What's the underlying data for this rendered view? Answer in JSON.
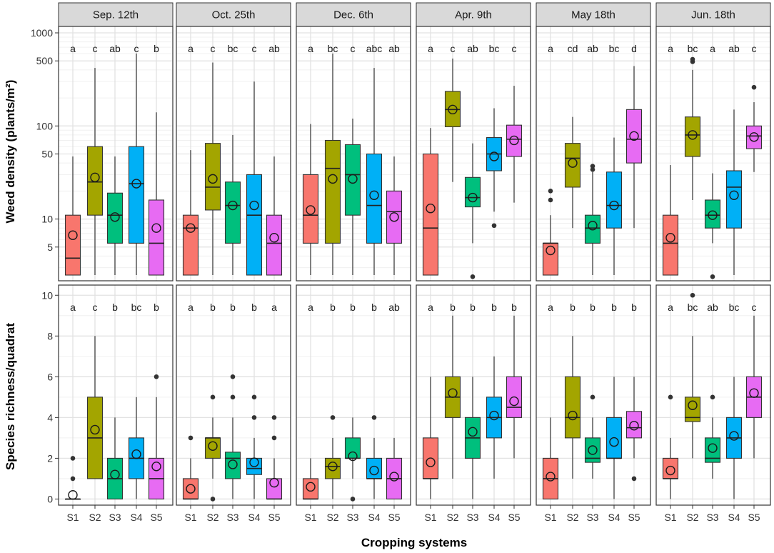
{
  "chart_data": {
    "type": "boxplot",
    "title": "",
    "xlabel": "Cropping systems",
    "systems": [
      "S1",
      "S2",
      "S3",
      "S4",
      "S5"
    ],
    "colors": [
      "#F8766D",
      "#A3A500",
      "#00BF7D",
      "#00B0F6",
      "#E76BF3"
    ],
    "dates": [
      "Sep. 12th",
      "Oct. 25th",
      "Dec. 6th",
      "Apr. 9th",
      "May 18th",
      "Jun. 18th"
    ],
    "rows": [
      {
        "ylabel": "Weed density (plants/m²)",
        "scale": "log10",
        "ylim": [
          2.5,
          1000
        ],
        "ticks": [
          5,
          10,
          50,
          100,
          500,
          1000
        ],
        "tick_labels": [
          "5",
          "10",
          "50",
          "100",
          "500",
          "1000"
        ],
        "panels": [
          {
            "letters": [
              "a",
              "c",
              "ab",
              "c",
              "b"
            ],
            "boxes": [
              {
                "q1": 2.5,
                "med": 3.8,
                "q3": 11,
                "wlo": 2.5,
                "whi": 47,
                "mean": 6.7,
                "out": []
              },
              {
                "q1": 11,
                "med": 25,
                "q3": 60,
                "wlo": 2.5,
                "whi": 420,
                "mean": 28,
                "out": []
              },
              {
                "q1": 5.5,
                "med": 11,
                "q3": 19,
                "wlo": 2.5,
                "whi": 47,
                "mean": 10.5,
                "out": []
              },
              {
                "q1": 5.5,
                "med": 24,
                "q3": 60,
                "wlo": 2.5,
                "whi": 600,
                "mean": 24,
                "out": []
              },
              {
                "q1": 2.5,
                "med": 5.5,
                "q3": 16,
                "wlo": 2.5,
                "whi": 140,
                "mean": 8,
                "out": []
              }
            ]
          },
          {
            "letters": [
              "a",
              "c",
              "bc",
              "c",
              "ab"
            ],
            "boxes": [
              {
                "q1": 2.5,
                "med": 8,
                "q3": 11,
                "wlo": 2.5,
                "whi": 55,
                "mean": 8,
                "out": []
              },
              {
                "q1": 12.5,
                "med": 22,
                "q3": 65,
                "wlo": 2.5,
                "whi": 480,
                "mean": 27,
                "out": []
              },
              {
                "q1": 5.5,
                "med": 14,
                "q3": 25,
                "wlo": 2.5,
                "whi": 80,
                "mean": 14,
                "out": []
              },
              {
                "q1": 2.5,
                "med": 11,
                "q3": 30,
                "wlo": 2.5,
                "whi": 300,
                "mean": 14,
                "out": []
              },
              {
                "q1": 2.5,
                "med": 5.5,
                "q3": 11,
                "wlo": 2.5,
                "whi": 47,
                "mean": 6.3,
                "out": []
              }
            ]
          },
          {
            "letters": [
              "a",
              "bc",
              "c",
              "abc",
              "ab"
            ],
            "boxes": [
              {
                "q1": 5.5,
                "med": 11,
                "q3": 30,
                "wlo": 2.5,
                "whi": 105,
                "mean": 12.5,
                "out": []
              },
              {
                "q1": 5.5,
                "med": 35,
                "q3": 70,
                "wlo": 2.5,
                "whi": 600,
                "mean": 27,
                "out": []
              },
              {
                "q1": 11,
                "med": 30,
                "q3": 63,
                "wlo": 2.5,
                "whi": 120,
                "mean": 27,
                "out": []
              },
              {
                "q1": 5.5,
                "med": 14,
                "q3": 50,
                "wlo": 2.5,
                "whi": 420,
                "mean": 18,
                "out": []
              },
              {
                "q1": 5.5,
                "med": 12,
                "q3": 20,
                "wlo": 2.5,
                "whi": 47,
                "mean": 10.5,
                "out": []
              }
            ]
          },
          {
            "letters": [
              "a",
              "c",
              "ab",
              "bc",
              "c"
            ],
            "boxes": [
              {
                "q1": 2.5,
                "med": 8,
                "q3": 50,
                "wlo": 2.5,
                "whi": 95,
                "mean": 13,
                "out": []
              },
              {
                "q1": 98,
                "med": 150,
                "q3": 235,
                "wlo": 25,
                "whi": 530,
                "mean": 150,
                "out": []
              },
              {
                "q1": 13.5,
                "med": 17,
                "q3": 28,
                "wlo": 5.5,
                "whi": 65,
                "mean": 17,
                "out": [
                  2.4
                ]
              },
              {
                "q1": 33,
                "med": 50,
                "q3": 75,
                "wlo": 12,
                "whi": 155,
                "mean": 47,
                "out": [
                  8.5
                ]
              },
              {
                "q1": 47,
                "med": 72,
                "q3": 102,
                "wlo": 15,
                "whi": 270,
                "mean": 70,
                "out": []
              }
            ]
          },
          {
            "letters": [
              "a",
              "cd",
              "ab",
              "bc",
              "d"
            ],
            "boxes": [
              {
                "q1": 2.5,
                "med": 5.5,
                "q3": 5.5,
                "wlo": 2.5,
                "whi": 11,
                "mean": 4.6,
                "out": [
                  16,
                  20
                ]
              },
              {
                "q1": 22,
                "med": 45,
                "q3": 65,
                "wlo": 8,
                "whi": 125,
                "mean": 40,
                "out": []
              },
              {
                "q1": 5.5,
                "med": 8,
                "q3": 11,
                "wlo": 2.5,
                "whi": 32,
                "mean": 8.5,
                "out": [
                  34,
                  37
                ]
              },
              {
                "q1": 8,
                "med": 14,
                "q3": 32,
                "wlo": 2.5,
                "whi": 75,
                "mean": 14,
                "out": []
              },
              {
                "q1": 40,
                "med": 72,
                "q3": 150,
                "wlo": 8,
                "whi": 440,
                "mean": 78,
                "out": []
              }
            ]
          },
          {
            "letters": [
              "a",
              "bc",
              "a",
              "ab",
              "c"
            ],
            "boxes": [
              {
                "q1": 2.5,
                "med": 5.5,
                "q3": 11,
                "wlo": 2.5,
                "whi": 38,
                "mean": 6.3,
                "out": []
              },
              {
                "q1": 47,
                "med": 80,
                "q3": 125,
                "wlo": 16,
                "whi": 400,
                "mean": 80,
                "out": [
                  490,
                  520
                ]
              },
              {
                "q1": 8,
                "med": 11,
                "q3": 16,
                "wlo": 5.5,
                "whi": 31,
                "mean": 11,
                "out": [
                  2.4
                ]
              },
              {
                "q1": 8,
                "med": 22,
                "q3": 33,
                "wlo": 2.5,
                "whi": 150,
                "mean": 18,
                "out": []
              },
              {
                "q1": 57,
                "med": 78,
                "q3": 100,
                "wlo": 32,
                "whi": 180,
                "mean": 76,
                "out": [
                  260
                ]
              }
            ]
          }
        ]
      },
      {
        "ylabel": "Species richness/quadrat",
        "scale": "linear",
        "ylim": [
          -0.3,
          10.5
        ],
        "ticks": [
          0,
          2,
          4,
          6,
          8,
          10
        ],
        "tick_labels": [
          "0",
          "2",
          "4",
          "6",
          "8",
          "10"
        ],
        "panels": [
          {
            "letters": [
              "a",
              "c",
              "b",
              "bc",
              "b"
            ],
            "boxes": [
              {
                "q1": 0,
                "med": 0,
                "q3": 0,
                "wlo": 0,
                "whi": 0,
                "mean": 0.2,
                "out": [
                  1,
                  2
                ]
              },
              {
                "q1": 1,
                "med": 3,
                "q3": 5,
                "wlo": 1,
                "whi": 8,
                "mean": 3.4,
                "out": []
              },
              {
                "q1": 0,
                "med": 1,
                "q3": 2,
                "wlo": 0,
                "whi": 4,
                "mean": 1.2,
                "out": []
              },
              {
                "q1": 1,
                "med": 2,
                "q3": 3,
                "wlo": 0,
                "whi": 5,
                "mean": 2.2,
                "out": []
              },
              {
                "q1": 0,
                "med": 1,
                "q3": 2,
                "wlo": 0,
                "whi": 5,
                "mean": 1.6,
                "out": [
                  6
                ]
              }
            ]
          },
          {
            "letters": [
              "a",
              "b",
              "b",
              "b",
              "a"
            ],
            "boxes": [
              {
                "q1": 0,
                "med": 0,
                "q3": 1,
                "wlo": 0,
                "whi": 2,
                "mean": 0.5,
                "out": [
                  3
                ]
              },
              {
                "q1": 2,
                "med": 3,
                "q3": 3,
                "wlo": 1,
                "whi": 4,
                "mean": 2.6,
                "out": [
                  0,
                  5
                ]
              },
              {
                "q1": 1,
                "med": 2,
                "q3": 2.3,
                "wlo": 0,
                "whi": 4,
                "mean": 1.7,
                "out": [
                  5,
                  6
                ]
              },
              {
                "q1": 1.2,
                "med": 1.5,
                "q3": 2,
                "wlo": 0,
                "whi": 3,
                "mean": 1.8,
                "out": [
                  4,
                  5
                ]
              },
              {
                "q1": 0,
                "med": 0,
                "q3": 1,
                "wlo": 0,
                "whi": 2,
                "mean": 0.8,
                "out": [
                  3,
                  4
                ]
              }
            ]
          },
          {
            "letters": [
              "a",
              "b",
              "b",
              "b",
              "ab"
            ],
            "boxes": [
              {
                "q1": 0,
                "med": 0,
                "q3": 1,
                "wlo": 0,
                "whi": 2,
                "mean": 0.6,
                "out": []
              },
              {
                "q1": 1,
                "med": 1.6,
                "q3": 2,
                "wlo": 0,
                "whi": 3,
                "mean": 1.6,
                "out": [
                  4
                ]
              },
              {
                "q1": 2,
                "med": 2,
                "q3": 3,
                "wlo": 1,
                "whi": 4,
                "mean": 2.1,
                "out": [
                  0
                ]
              },
              {
                "q1": 1,
                "med": 1,
                "q3": 2,
                "wlo": 0,
                "whi": 3,
                "mean": 1.4,
                "out": [
                  4
                ]
              },
              {
                "q1": 0,
                "med": 1,
                "q3": 2,
                "wlo": 0,
                "whi": 3,
                "mean": 1.1,
                "out": []
              }
            ]
          },
          {
            "letters": [
              "a",
              "b",
              "b",
              "b",
              "b"
            ],
            "boxes": [
              {
                "q1": 1,
                "med": 1,
                "q3": 3,
                "wlo": 0,
                "whi": 6,
                "mean": 1.8,
                "out": []
              },
              {
                "q1": 4,
                "med": 5,
                "q3": 6,
                "wlo": 1,
                "whi": 9,
                "mean": 5.2,
                "out": []
              },
              {
                "q1": 2,
                "med": 3,
                "q3": 4,
                "wlo": 0,
                "whi": 6,
                "mean": 3.3,
                "out": []
              },
              {
                "q1": 3,
                "med": 4,
                "q3": 5,
                "wlo": 1,
                "whi": 7,
                "mean": 4.1,
                "out": []
              },
              {
                "q1": 4,
                "med": 4.5,
                "q3": 6,
                "wlo": 2,
                "whi": 9,
                "mean": 4.8,
                "out": []
              }
            ]
          },
          {
            "letters": [
              "a",
              "b",
              "b",
              "b",
              "b"
            ],
            "boxes": [
              {
                "q1": 0,
                "med": 1,
                "q3": 2,
                "wlo": 0,
                "whi": 4,
                "mean": 1.1,
                "out": []
              },
              {
                "q1": 3,
                "med": 4,
                "q3": 6,
                "wlo": 1,
                "whi": 8,
                "mean": 4.1,
                "out": []
              },
              {
                "q1": 1.8,
                "med": 2,
                "q3": 3,
                "wlo": 1,
                "whi": 4,
                "mean": 2.4,
                "out": [
                  5
                ]
              },
              {
                "q1": 2,
                "med": 2,
                "q3": 4,
                "wlo": 0,
                "whi": 6,
                "mean": 2.8,
                "out": []
              },
              {
                "q1": 3,
                "med": 3.5,
                "q3": 4.3,
                "wlo": 2,
                "whi": 6,
                "mean": 3.6,
                "out": [
                  1
                ]
              }
            ]
          },
          {
            "letters": [
              "a",
              "bc",
              "ab",
              "bc",
              "c"
            ],
            "boxes": [
              {
                "q1": 1,
                "med": 1,
                "q3": 2,
                "wlo": 0,
                "whi": 3,
                "mean": 1.4,
                "out": [
                  5
                ]
              },
              {
                "q1": 3.8,
                "med": 4,
                "q3": 5,
                "wlo": 2,
                "whi": 8,
                "mean": 4.6,
                "out": [
                  10
                ]
              },
              {
                "q1": 1.8,
                "med": 2,
                "q3": 3,
                "wlo": 1,
                "whi": 4,
                "mean": 2.5,
                "out": [
                  5
                ]
              },
              {
                "q1": 2,
                "med": 3,
                "q3": 4,
                "wlo": 0,
                "whi": 6,
                "mean": 3.1,
                "out": []
              },
              {
                "q1": 4,
                "med": 5,
                "q3": 6,
                "wlo": 2,
                "whi": 9,
                "mean": 5.2,
                "out": []
              }
            ]
          }
        ]
      }
    ]
  }
}
